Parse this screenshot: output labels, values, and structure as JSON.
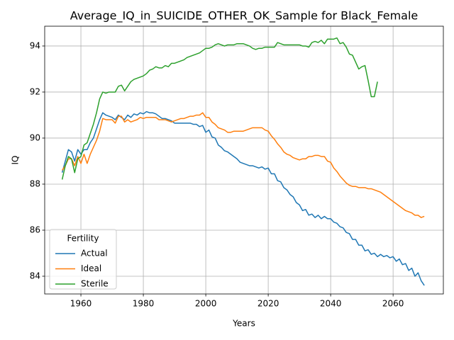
{
  "chart_data": {
    "type": "line",
    "title": "Average_IQ_in_SUICIDE_OTHER_OK_Sample for Black_Female",
    "xlabel": "Years",
    "ylabel": "IQ",
    "legend_title": "Fertility",
    "legend": "lower left",
    "grid": true,
    "x": [
      1954,
      1955,
      1956,
      1957,
      1958,
      1959,
      1960,
      1961,
      1962,
      1963,
      1964,
      1965,
      1966,
      1967,
      1968,
      1969,
      1970,
      1971,
      1972,
      1973,
      1974,
      1975,
      1976,
      1977,
      1978,
      1979,
      1980,
      1981,
      1982,
      1983,
      1984,
      1985,
      1986,
      1987,
      1988,
      1989,
      1990,
      1991,
      1992,
      1993,
      1994,
      1995,
      1996,
      1997,
      1998,
      1999,
      2000,
      2001,
      2002,
      2003,
      2004,
      2005,
      2006,
      2007,
      2008,
      2009,
      2010,
      2011,
      2012,
      2013,
      2014,
      2015,
      2016,
      2017,
      2018,
      2019,
      2020,
      2021,
      2022,
      2023,
      2024,
      2025,
      2026,
      2027,
      2028,
      2029,
      2030,
      2031,
      2032,
      2033,
      2034,
      2035,
      2036,
      2037,
      2038,
      2039,
      2040,
      2041,
      2042,
      2043,
      2044,
      2045,
      2046,
      2047,
      2048,
      2049,
      2050,
      2051,
      2052,
      2053,
      2054,
      2055,
      2056,
      2057,
      2058,
      2059,
      2060,
      2061,
      2062,
      2063,
      2064,
      2065,
      2066,
      2067,
      2068,
      2069,
      2070
    ],
    "series": [
      {
        "name": "Actual",
        "color": "#1f77b4",
        "values": [
          88.5,
          89.0,
          89.5,
          89.4,
          89.0,
          89.5,
          89.3,
          89.5,
          89.5,
          89.8,
          90.0,
          90.4,
          90.8,
          91.1,
          91.0,
          90.95,
          90.9,
          90.8,
          91.0,
          90.9,
          90.8,
          91.0,
          90.9,
          91.05,
          91.0,
          91.1,
          91.05,
          91.15,
          91.1,
          91.1,
          91.05,
          90.95,
          90.85,
          90.85,
          90.8,
          90.75,
          90.65,
          90.65,
          90.65,
          90.65,
          90.65,
          90.65,
          90.6,
          90.6,
          90.5,
          90.55,
          90.25,
          90.35,
          90.05,
          90.0,
          89.7,
          89.6,
          89.45,
          89.4,
          89.3,
          89.2,
          89.1,
          88.95,
          88.9,
          88.85,
          88.8,
          88.8,
          88.75,
          88.7,
          88.75,
          88.65,
          88.7,
          88.45,
          88.45,
          88.15,
          88.1,
          87.85,
          87.75,
          87.55,
          87.45,
          87.2,
          87.1,
          86.85,
          86.9,
          86.65,
          86.7,
          86.55,
          86.65,
          86.5,
          86.6,
          86.5,
          86.5,
          86.35,
          86.3,
          86.15,
          86.1,
          85.9,
          85.85,
          85.6,
          85.6,
          85.35,
          85.35,
          85.1,
          85.15,
          84.95,
          85.0,
          84.85,
          84.95,
          84.85,
          84.9,
          84.8,
          84.85,
          84.65,
          84.75,
          84.5,
          84.55,
          84.25,
          84.35,
          84.0,
          84.15,
          83.8,
          83.6
        ]
      },
      {
        "name": "Ideal",
        "color": "#ff7f0e",
        "values": [
          88.6,
          88.8,
          89.1,
          89.1,
          88.8,
          89.2,
          88.9,
          89.3,
          88.9,
          89.3,
          89.6,
          89.9,
          90.3,
          90.85,
          90.8,
          90.8,
          90.8,
          90.65,
          90.95,
          90.95,
          90.7,
          90.8,
          90.7,
          90.75,
          90.8,
          90.9,
          90.85,
          90.9,
          90.9,
          90.9,
          90.9,
          90.8,
          90.8,
          90.8,
          90.75,
          90.7,
          90.75,
          90.8,
          90.85,
          90.85,
          90.9,
          90.95,
          90.95,
          91.0,
          91.0,
          91.1,
          90.9,
          90.9,
          90.7,
          90.6,
          90.45,
          90.4,
          90.35,
          90.25,
          90.25,
          90.3,
          90.3,
          90.3,
          90.3,
          90.35,
          90.4,
          90.45,
          90.45,
          90.45,
          90.45,
          90.35,
          90.3,
          90.1,
          89.95,
          89.75,
          89.6,
          89.4,
          89.3,
          89.25,
          89.15,
          89.1,
          89.05,
          89.1,
          89.1,
          89.2,
          89.2,
          89.25,
          89.25,
          89.2,
          89.2,
          89.0,
          88.95,
          88.7,
          88.55,
          88.35,
          88.2,
          88.05,
          87.95,
          87.9,
          87.9,
          87.85,
          87.85,
          87.85,
          87.8,
          87.8,
          87.75,
          87.7,
          87.65,
          87.55,
          87.45,
          87.35,
          87.25,
          87.15,
          87.05,
          86.95,
          86.85,
          86.8,
          86.75,
          86.65,
          86.65,
          86.55,
          86.6
        ]
      },
      {
        "name": "Sterile",
        "color": "#2ca02c",
        "values": [
          88.2,
          88.8,
          89.2,
          89.1,
          88.5,
          89.1,
          89.2,
          89.7,
          89.8,
          90.2,
          90.6,
          91.1,
          91.7,
          92.0,
          91.95,
          92.0,
          92.0,
          92.0,
          92.25,
          92.3,
          92.05,
          92.25,
          92.45,
          92.55,
          92.6,
          92.65,
          92.7,
          92.8,
          92.95,
          93.0,
          93.1,
          93.05,
          93.05,
          93.15,
          93.1,
          93.25,
          93.25,
          93.3,
          93.35,
          93.4,
          93.5,
          93.55,
          93.6,
          93.65,
          93.7,
          93.8,
          93.9,
          93.9,
          93.95,
          94.05,
          94.1,
          94.05,
          94.0,
          94.05,
          94.05,
          94.05,
          94.1,
          94.1,
          94.1,
          94.05,
          94.0,
          93.9,
          93.85,
          93.9,
          93.9,
          93.95,
          93.95,
          93.95,
          93.95,
          94.15,
          94.1,
          94.05,
          94.05,
          94.05,
          94.05,
          94.05,
          94.05,
          94.0,
          94.0,
          93.95,
          94.15,
          94.2,
          94.15,
          94.25,
          94.1,
          94.3,
          94.3,
          94.3,
          94.35,
          94.1,
          94.15,
          93.95,
          93.65,
          93.6,
          93.3,
          93.0,
          93.1,
          93.15,
          92.5,
          91.8,
          91.8,
          92.45,
          null,
          null,
          null,
          null,
          null,
          null,
          null,
          null,
          null,
          null,
          null,
          null,
          null,
          null,
          null
        ]
      }
    ],
    "xlim": [
      1948.4,
      2076.1
    ],
    "xticks": [
      1960,
      1980,
      2000,
      2020,
      2040,
      2060
    ],
    "ylim": [
      83.23,
      94.86
    ],
    "yticks": [
      84,
      86,
      88,
      90,
      92,
      94
    ]
  }
}
